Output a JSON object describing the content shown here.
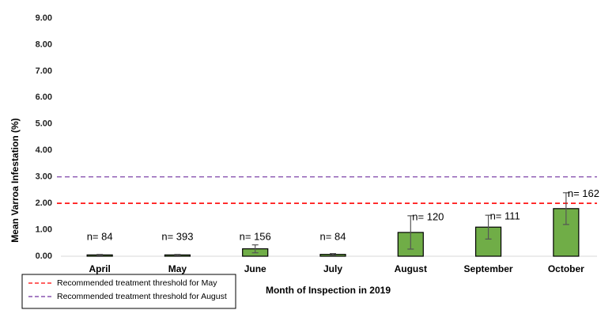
{
  "chart_data": {
    "type": "bar",
    "y_label": "Mean Varroa Infestation (%)",
    "x_label": "Month of Inspection in 2019",
    "categories": [
      "April",
      "May",
      "June",
      "July",
      "August",
      "September",
      "October"
    ],
    "values": [
      0.05,
      0.05,
      0.28,
      0.07,
      0.9,
      1.1,
      1.8
    ],
    "errors": [
      0.02,
      0.02,
      0.15,
      0.03,
      0.63,
      0.45,
      0.6
    ],
    "annotations": [
      "n= 84",
      "n= 393",
      "n= 156",
      "n= 84",
      "n= 120",
      "n= 111",
      "n= 162"
    ],
    "color": "#70ad47",
    "thresholds": [
      {
        "name": "Recommended treatment threshold for May",
        "value": 2,
        "color": "#ff0000"
      },
      {
        "name": "Recommended treatment threshold for August",
        "value": 3,
        "color": "#7030a0"
      }
    ],
    "ylim": [
      0,
      9
    ],
    "yticks": [
      {
        "value": 0,
        "label": "0.00"
      },
      {
        "value": 1,
        "label": "1.00"
      },
      {
        "value": 2,
        "label": "2.00"
      },
      {
        "value": 3,
        "label": "3.00"
      },
      {
        "value": 4,
        "label": "4.00"
      },
      {
        "value": 5,
        "label": "5.00"
      },
      {
        "value": 6,
        "label": "6.00"
      },
      {
        "value": 7,
        "label": "7.00"
      },
      {
        "value": 8,
        "label": "8.00"
      },
      {
        "value": 9,
        "label": "9.00"
      }
    ],
    "grid": false,
    "legend": "bottom-left"
  }
}
